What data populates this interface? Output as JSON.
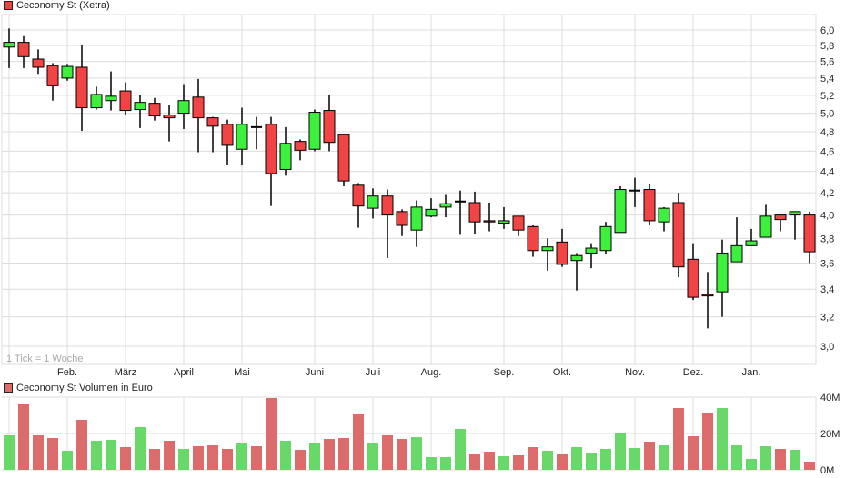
{
  "price_legend": {
    "label": "Ceconomy St (Xetra)",
    "color": "#f04040"
  },
  "volume_legend": {
    "label": "Ceconomy St Volumen in Euro",
    "color": "#dc6b6b"
  },
  "tick_note": "1 Tick = 1 Woche",
  "colors": {
    "up": "#3ef03e",
    "down": "#f24444",
    "vol_up": "#68d968",
    "vol_down": "#dc6b6b",
    "grid": "#dcdcdc"
  },
  "chart_data": [
    {
      "type": "candlestick",
      "title": "Ceconomy St (Xetra)",
      "xlabel": "",
      "ylabel": "",
      "yscale": "log",
      "ylim": [
        2.9,
        6.2
      ],
      "yticks": [
        "6,0",
        "5,8",
        "5,6",
        "5,4",
        "5,2",
        "5,0",
        "4,8",
        "4,6",
        "4,4",
        "4,2",
        "4,0",
        "3,8",
        "3,6",
        "3,4",
        "3,2",
        "3,0"
      ],
      "ytick_values": [
        6.0,
        5.8,
        5.6,
        5.4,
        5.2,
        5.0,
        4.8,
        4.6,
        4.4,
        4.2,
        4.0,
        3.8,
        3.6,
        3.4,
        3.2,
        3.0
      ],
      "xticks": [
        {
          "label": "Feb.",
          "index": 4
        },
        {
          "label": "März",
          "index": 8
        },
        {
          "label": "April",
          "index": 12
        },
        {
          "label": "Mai",
          "index": 16
        },
        {
          "label": "Juni",
          "index": 21
        },
        {
          "label": "Juli",
          "index": 25
        },
        {
          "label": "Aug.",
          "index": 29
        },
        {
          "label": "Sep.",
          "index": 34
        },
        {
          "label": "Okt.",
          "index": 38
        },
        {
          "label": "Nov.",
          "index": 43
        },
        {
          "label": "Dez.",
          "index": 47
        },
        {
          "label": "Jan.",
          "index": 51
        }
      ],
      "grid": true,
      "ohlc": [
        [
          5.78,
          6.02,
          5.52,
          5.84
        ],
        [
          5.84,
          5.92,
          5.52,
          5.66
        ],
        [
          5.63,
          5.75,
          5.45,
          5.53
        ],
        [
          5.55,
          5.58,
          5.14,
          5.31
        ],
        [
          5.4,
          5.57,
          5.37,
          5.54
        ],
        [
          5.53,
          5.8,
          4.81,
          5.06
        ],
        [
          5.06,
          5.3,
          5.04,
          5.21
        ],
        [
          5.14,
          5.48,
          5.03,
          5.19
        ],
        [
          5.25,
          5.35,
          4.98,
          5.03
        ],
        [
          5.04,
          5.2,
          4.84,
          5.12
        ],
        [
          5.11,
          5.17,
          4.92,
          4.97
        ],
        [
          4.98,
          5.09,
          4.7,
          4.95
        ],
        [
          5.0,
          5.33,
          4.83,
          5.14
        ],
        [
          5.18,
          5.39,
          4.59,
          4.95
        ],
        [
          4.95,
          4.96,
          4.59,
          4.86
        ],
        [
          4.88,
          4.93,
          4.46,
          4.66
        ],
        [
          4.62,
          5.06,
          4.46,
          4.88
        ],
        [
          4.85,
          4.96,
          4.62,
          4.85
        ],
        [
          4.88,
          4.96,
          4.08,
          4.38
        ],
        [
          4.42,
          4.85,
          4.36,
          4.68
        ],
        [
          4.7,
          4.72,
          4.51,
          4.61
        ],
        [
          4.62,
          5.04,
          4.6,
          5.01
        ],
        [
          5.03,
          5.2,
          4.6,
          4.69
        ],
        [
          4.77,
          4.78,
          4.26,
          4.31
        ],
        [
          4.27,
          4.29,
          3.89,
          4.08
        ],
        [
          4.06,
          4.24,
          3.97,
          4.17
        ],
        [
          4.17,
          4.23,
          3.64,
          4.0
        ],
        [
          4.03,
          4.05,
          3.82,
          3.91
        ],
        [
          3.87,
          4.13,
          3.73,
          4.07
        ],
        [
          3.99,
          4.15,
          3.98,
          4.05
        ],
        [
          4.07,
          4.18,
          3.98,
          4.1
        ],
        [
          4.12,
          4.22,
          3.83,
          4.12
        ],
        [
          4.11,
          4.21,
          3.84,
          3.94
        ],
        [
          3.95,
          4.11,
          3.86,
          3.94
        ],
        [
          3.93,
          4.07,
          3.88,
          3.95
        ],
        [
          3.99,
          3.99,
          3.82,
          3.87
        ],
        [
          3.9,
          3.91,
          3.65,
          3.7
        ],
        [
          3.7,
          3.8,
          3.54,
          3.73
        ],
        [
          3.77,
          3.88,
          3.57,
          3.59
        ],
        [
          3.62,
          3.68,
          3.39,
          3.66
        ],
        [
          3.68,
          3.76,
          3.56,
          3.72
        ],
        [
          3.7,
          3.94,
          3.67,
          3.9
        ],
        [
          3.85,
          4.26,
          3.85,
          4.23
        ],
        [
          4.22,
          4.34,
          4.07,
          4.22
        ],
        [
          4.23,
          4.28,
          3.91,
          3.95
        ],
        [
          3.94,
          4.07,
          3.86,
          4.06
        ],
        [
          4.11,
          4.2,
          3.49,
          3.57
        ],
        [
          3.63,
          3.76,
          3.32,
          3.34
        ],
        [
          3.36,
          3.53,
          3.12,
          3.35
        ],
        [
          3.38,
          3.79,
          3.2,
          3.68
        ],
        [
          3.61,
          3.98,
          3.61,
          3.74
        ],
        [
          3.74,
          3.88,
          3.74,
          3.78
        ],
        [
          3.81,
          4.09,
          3.81,
          3.99
        ],
        [
          4.0,
          4.01,
          3.86,
          3.96
        ],
        [
          4.0,
          4.03,
          3.79,
          4.03
        ],
        [
          4.0,
          4.03,
          3.6,
          3.69
        ]
      ]
    },
    {
      "type": "bar",
      "title": "Ceconomy St Volumen in Euro",
      "ylabel": "",
      "ylim": [
        0,
        40
      ],
      "yticks": [
        "40M",
        "20M",
        "0M"
      ],
      "ytick_values": [
        40,
        20,
        0
      ],
      "unit": "M EUR",
      "grid": true,
      "values": [
        19,
        36,
        19,
        17.5,
        10.5,
        27.5,
        16,
        16.5,
        12.5,
        23.5,
        11.5,
        16,
        11.5,
        13,
        13.5,
        11.5,
        14.5,
        13,
        39.5,
        16,
        11,
        14.5,
        17,
        17.5,
        30.5,
        14.5,
        19,
        17,
        18,
        7,
        7,
        22.5,
        8.5,
        10,
        7.5,
        8,
        12.5,
        10.5,
        8.5,
        12.5,
        9.5,
        11.5,
        20.5,
        12,
        15.5,
        13.5,
        34,
        18.5,
        31,
        34,
        13.5,
        6,
        13,
        11.5,
        11,
        4.5
      ],
      "up": [
        1,
        0,
        0,
        0,
        1,
        0,
        1,
        1,
        0,
        1,
        0,
        0,
        1,
        0,
        0,
        0,
        1,
        0,
        0,
        1,
        0,
        1,
        0,
        0,
        0,
        1,
        0,
        0,
        1,
        1,
        1,
        1,
        0,
        0,
        1,
        0,
        0,
        1,
        0,
        1,
        1,
        1,
        1,
        1,
        0,
        1,
        0,
        0,
        0,
        1,
        1,
        1,
        1,
        0,
        1,
        0
      ]
    }
  ]
}
